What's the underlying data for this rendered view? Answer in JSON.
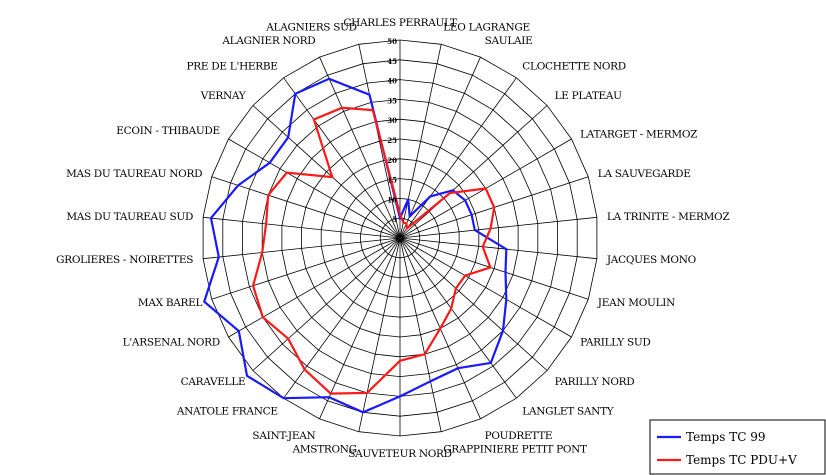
{
  "chart_data": {
    "type": "radar",
    "title": "",
    "categories": [
      "CHARLES PERRAULT",
      "LEO LAGRANGE",
      "SAULAIE",
      "CLOCHETTE NORD",
      "LE PLATEAU",
      "LATARGET - MERMOZ",
      "LA SAUVEGARDE",
      "LA TRINITE - MERMOZ",
      "JACQUES MONO",
      "JEAN MOULIN",
      "PARILLY SUD",
      "PARILLY NORD",
      "LANGLET SANTY",
      "POUDRETTE",
      "GRAPPINIERE PETIT PONT",
      "SAUVETEUR NORD",
      "AMSTRONG",
      "SAINT-JEAN",
      "ANATOLE FRANCE",
      "CARAVELLE",
      "L'ARSENAL NORD",
      "MAX BAREL",
      "GROLIERES - NOIRETTES",
      "MAS DU TAUREAU SUD",
      "MAS DU TAUREAU NORD",
      "ECOIN - THIBAUDE",
      "VERNAY",
      "PRE DE L'HERBE",
      "ALAGNIER NORD",
      "ALAGNIERS SUD"
    ],
    "radial_ticks": [
      "5",
      "10",
      "15",
      "20",
      "25",
      "30",
      "35",
      "40",
      "45",
      "50"
    ],
    "rmax": 50,
    "series": [
      {
        "name": "Temps TC 99",
        "color": "#1a1aff",
        "values": [
          5,
          10,
          6,
          13,
          18,
          19,
          19,
          19,
          27,
          28,
          31,
          35,
          39,
          36,
          37,
          40,
          45,
          44,
          50,
          52,
          47,
          52,
          46,
          48,
          43,
          38,
          38,
          45,
          44,
          37
        ]
      },
      {
        "name": "Temps TC PDU+V",
        "color": "#ff1a1a",
        "values": [
          6,
          4,
          4,
          3,
          17,
          25,
          25,
          23,
          21,
          24,
          19,
          19,
          22,
          25,
          30,
          31,
          40,
          43,
          41,
          38,
          40,
          39,
          35,
          34,
          35,
          33,
          23,
          37,
          36,
          33
        ]
      }
    ],
    "legend_position": "bottom-right"
  }
}
